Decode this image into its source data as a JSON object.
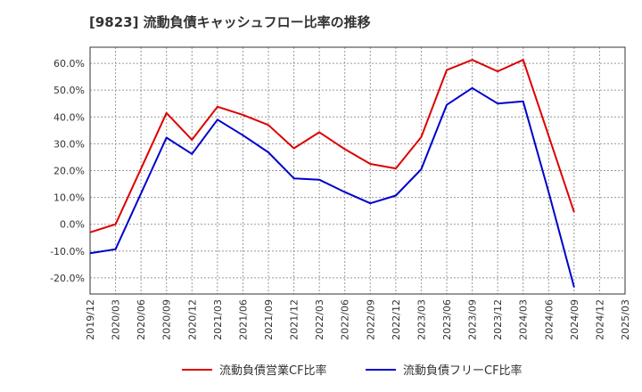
{
  "chart_data": {
    "type": "line",
    "title": "[9823]  流動負債キャッシュフロー比率の推移",
    "xlabel": "",
    "ylabel": "",
    "ylim": [
      -26,
      66
    ],
    "y_ticks": [
      60,
      50,
      40,
      30,
      20,
      10,
      0,
      -10,
      -20
    ],
    "y_tick_labels": [
      "60.0%",
      "50.0%",
      "40.0%",
      "30.0%",
      "20.0%",
      "10.0%",
      "0.0%",
      "-10.0%",
      "-20.0%"
    ],
    "x_tick_labels": [
      "2019/12",
      "2020/03",
      "2020/06",
      "2020/09",
      "2020/12",
      "2021/03",
      "2021/06",
      "2021/09",
      "2021/12",
      "2022/03",
      "2022/06",
      "2022/09",
      "2022/12",
      "2023/03",
      "2023/06",
      "2023/09",
      "2023/12",
      "2024/03",
      "2024/06",
      "2024/09",
      "2024/12",
      "2025/03"
    ],
    "grid": true,
    "legend_position": "bottom",
    "series": [
      {
        "name": "流動負債営業CF比率",
        "color": "#dd0000",
        "points": [
          [
            "2019/12",
            -3.0
          ],
          [
            "2020/03",
            0.0
          ],
          [
            "2020/09",
            41.5
          ],
          [
            "2020/12",
            31.5
          ],
          [
            "2021/03",
            43.8
          ],
          [
            "2021/06",
            40.8
          ],
          [
            "2021/09",
            37.0
          ],
          [
            "2021/12",
            28.3
          ],
          [
            "2022/03",
            34.3
          ],
          [
            "2022/06",
            28.0
          ],
          [
            "2022/09",
            22.5
          ],
          [
            "2022/12",
            20.8
          ],
          [
            "2023/03",
            32.5
          ],
          [
            "2023/06",
            57.5
          ],
          [
            "2023/09",
            61.3
          ],
          [
            "2023/12",
            57.0
          ],
          [
            "2024/03",
            61.3
          ],
          [
            "2024/06",
            33.0
          ],
          [
            "2024/09",
            4.5
          ]
        ]
      },
      {
        "name": "流動負債フリーCF比率",
        "color": "#0000cc",
        "points": [
          [
            "2019/12",
            -10.8
          ],
          [
            "2020/03",
            -9.3
          ],
          [
            "2020/09",
            32.3
          ],
          [
            "2020/12",
            26.2
          ],
          [
            "2021/03",
            39.0
          ],
          [
            "2021/06",
            33.2
          ],
          [
            "2021/09",
            26.8
          ],
          [
            "2021/12",
            17.1
          ],
          [
            "2022/03",
            16.6
          ],
          [
            "2022/06",
            12.0
          ],
          [
            "2022/09",
            7.8
          ],
          [
            "2022/12",
            10.7
          ],
          [
            "2023/03",
            20.5
          ],
          [
            "2023/06",
            44.5
          ],
          [
            "2023/09",
            50.8
          ],
          [
            "2023/12",
            45.0
          ],
          [
            "2024/03",
            45.8
          ],
          [
            "2024/06",
            12.0
          ],
          [
            "2024/09",
            -23.5
          ]
        ]
      }
    ]
  },
  "colors": {
    "axis": "#333333",
    "grid": "#999999",
    "background": "#ffffff"
  }
}
